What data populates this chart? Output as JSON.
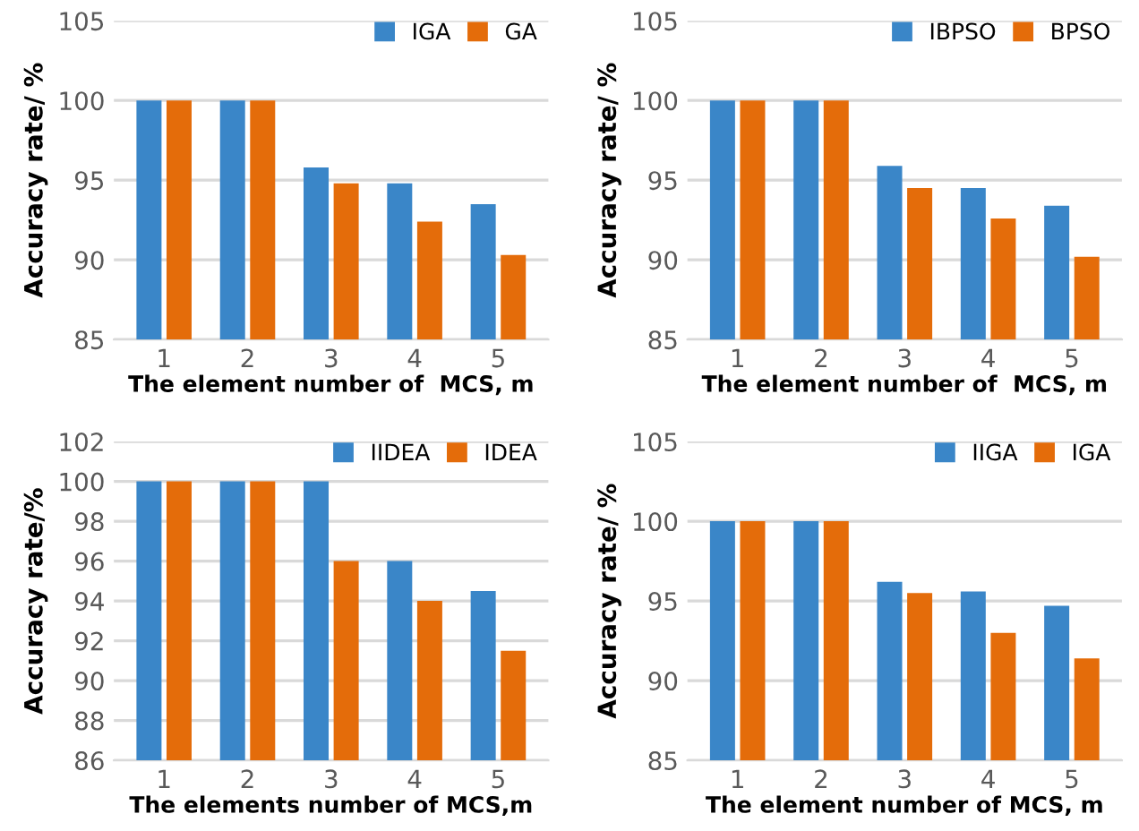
{
  "chart_data": [
    {
      "type": "bar",
      "xlabel": "The element number of  MCS, m",
      "ylabel": "Accuracy rate/ %",
      "categories": [
        "1",
        "2",
        "3",
        "4",
        "5"
      ],
      "ylim": [
        85,
        105
      ],
      "yticks": [
        85,
        90,
        95,
        100,
        105
      ],
      "grid": "y",
      "legend": "top right",
      "series": [
        {
          "name": "IGA",
          "color": "#3a86c8",
          "values": [
            100,
            100,
            95.8,
            94.8,
            93.5
          ]
        },
        {
          "name": "GA",
          "color": "#e46c0a",
          "values": [
            100,
            100,
            94.8,
            92.4,
            90.3
          ]
        }
      ]
    },
    {
      "type": "bar",
      "xlabel": "The element number of  MCS, m",
      "ylabel": "Accuracy rate/ %",
      "categories": [
        "1",
        "2",
        "3",
        "4",
        "5"
      ],
      "ylim": [
        85,
        105
      ],
      "yticks": [
        85,
        90,
        95,
        100,
        105
      ],
      "grid": "y",
      "legend": "top right",
      "series": [
        {
          "name": "IBPSO",
          "color": "#3a86c8",
          "values": [
            100,
            100,
            95.9,
            94.5,
            93.4
          ]
        },
        {
          "name": "BPSO",
          "color": "#e46c0a",
          "values": [
            100,
            100,
            94.5,
            92.6,
            90.2
          ]
        }
      ]
    },
    {
      "type": "bar",
      "xlabel": "The elements number of MCS,m",
      "ylabel": "Accuracy rate/%",
      "categories": [
        "1",
        "2",
        "3",
        "4",
        "5"
      ],
      "ylim": [
        86,
        102
      ],
      "yticks": [
        86,
        88,
        90,
        92,
        94,
        96,
        98,
        100,
        102
      ],
      "grid": "y",
      "legend": "top right",
      "series": [
        {
          "name": "IIDEA",
          "color": "#3a86c8",
          "values": [
            100,
            100,
            100,
            96,
            94.5
          ]
        },
        {
          "name": "IDEA",
          "color": "#e46c0a",
          "values": [
            100,
            100,
            96,
            94,
            91.5
          ]
        }
      ]
    },
    {
      "type": "bar",
      "xlabel": "The element number of MCS, m",
      "ylabel": "Accuracy rate/ %",
      "categories": [
        "1",
        "2",
        "3",
        "4",
        "5"
      ],
      "ylim": [
        85,
        105
      ],
      "yticks": [
        85,
        90,
        95,
        100,
        105
      ],
      "grid": "y",
      "legend": "top right",
      "series": [
        {
          "name": "IIGA",
          "color": "#3a86c8",
          "values": [
            100,
            100,
            96.2,
            95.6,
            94.7
          ]
        },
        {
          "name": "IGA",
          "color": "#e46c0a",
          "values": [
            100,
            100,
            95.5,
            93,
            91.4
          ]
        }
      ]
    }
  ]
}
